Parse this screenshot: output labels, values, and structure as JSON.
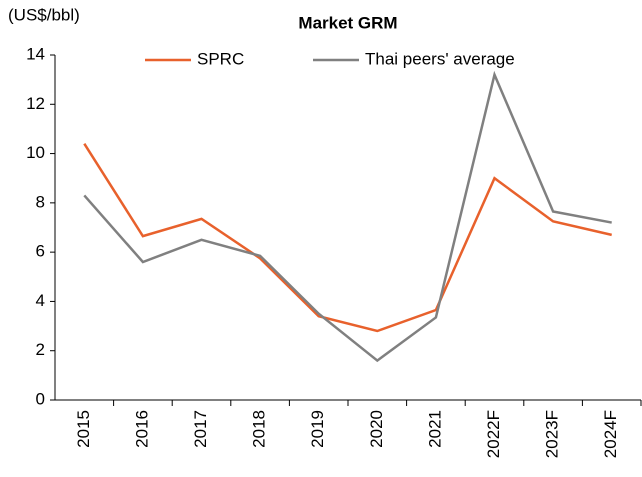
{
  "chart_data": {
    "type": "line",
    "title": "Market GRM",
    "y_label": "(US$/bbl)",
    "categories": [
      "2015",
      "2016",
      "2017",
      "2018",
      "2019",
      "2020",
      "2021",
      "2022F",
      "2023F",
      "2024F"
    ],
    "series": [
      {
        "name": "SPRC",
        "color": "#e8612c",
        "values": [
          10.4,
          6.65,
          7.35,
          5.75,
          3.4,
          2.8,
          3.65,
          9.0,
          7.25,
          6.7
        ]
      },
      {
        "name": "Thai peers' average",
        "color": "#808080",
        "values": [
          8.3,
          5.6,
          6.5,
          5.85,
          3.5,
          1.6,
          3.35,
          13.2,
          7.65,
          7.2
        ]
      }
    ],
    "ylim": [
      0,
      14
    ],
    "yticks": [
      0,
      2,
      4,
      6,
      8,
      10,
      12,
      14
    ],
    "legend": "top"
  }
}
